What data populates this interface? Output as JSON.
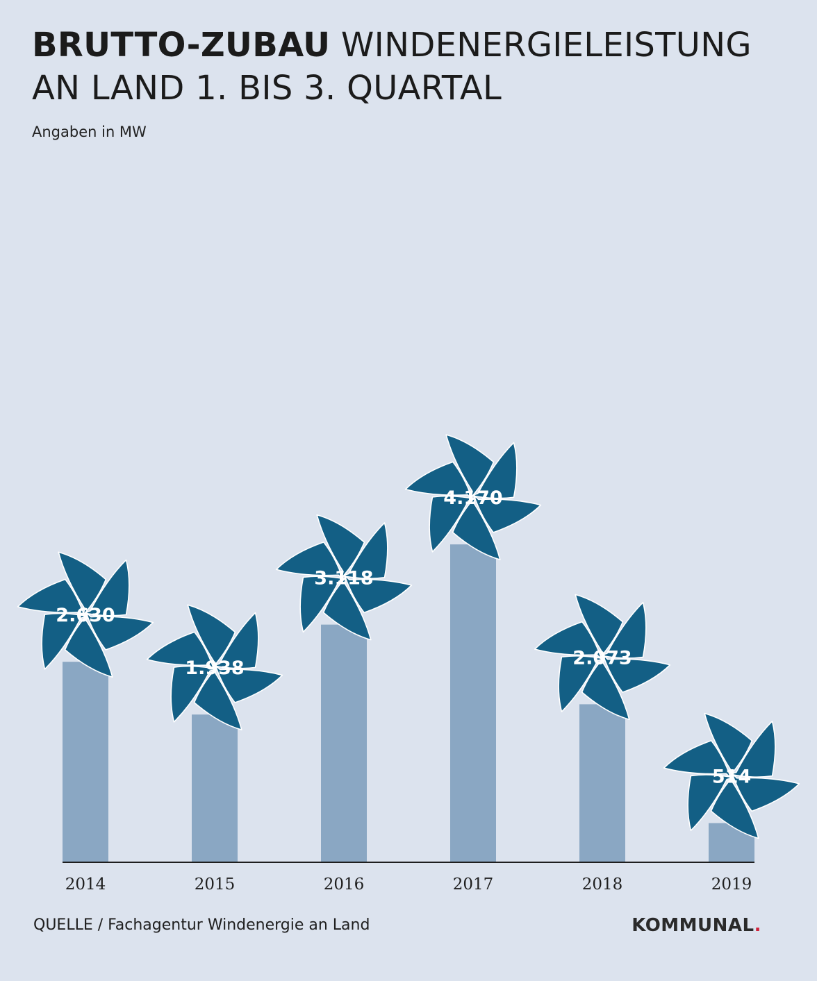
{
  "header": {
    "title_bold": "BRUTTO-ZUBAU",
    "title_rest": " WINDENERGIELEISTUNG AN LAND 1. BIS 3. QUARTAL",
    "subtitle": "Angaben in MW"
  },
  "footer": {
    "source": "QUELLE / Fachagentur Windenergie an Land",
    "logo": "KOMMUNAL",
    "logo_dot": "."
  },
  "colors": {
    "background": "#dce3ee",
    "bar": "#8aa7c3",
    "pinwheel": "#135f85",
    "pinwheel_outline": "#ffffff",
    "axis": "#1e1e1e",
    "logo_dot": "#d0213a"
  },
  "chart_data": {
    "type": "bar",
    "title": "BRUTTO-ZUBAU WINDENERGIELEISTUNG AN LAND 1. BIS 3. QUARTAL",
    "subtitle": "Angaben in MW",
    "xlabel": "",
    "ylabel": "",
    "unit": "MW",
    "categories": [
      "2014",
      "2015",
      "2016",
      "2017",
      "2018",
      "2019"
    ],
    "values": [
      2630,
      1938,
      3118,
      4170,
      2073,
      514
    ],
    "labels": [
      "2.630",
      "1.938",
      "3.118",
      "4.170",
      "2.073",
      "514"
    ],
    "ylim": [
      0,
      5200
    ],
    "grid": false,
    "legend": "none",
    "marker_icon": "pinwheel-icon"
  }
}
